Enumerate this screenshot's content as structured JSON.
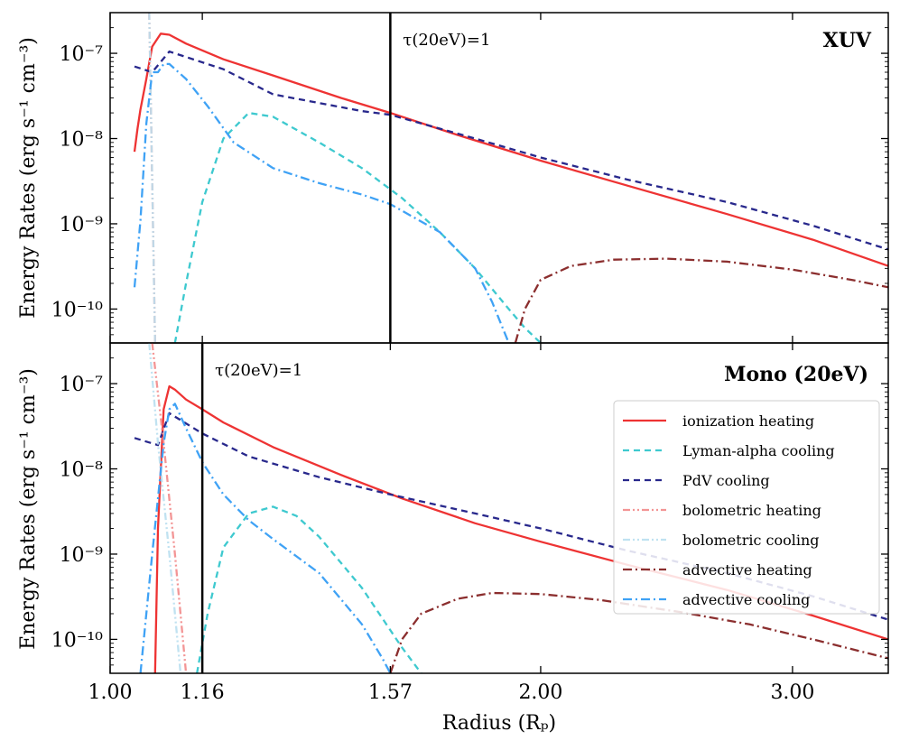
{
  "chart_data": [
    {
      "type": "line",
      "title": "XUV",
      "ylabel": "Energy Rates (erg s⁻¹ cm⁻³)",
      "xscale": "log",
      "yscale": "log",
      "xlim": [
        1.0,
        3.5
      ],
      "ylim": [
        4e-11,
        3e-07
      ],
      "yticks": [
        {
          "value": 1e-07,
          "label": "10⁻⁷"
        },
        {
          "value": 1e-08,
          "label": "10⁻⁸"
        },
        {
          "value": 1e-09,
          "label": "10⁻⁹"
        },
        {
          "value": 1e-10,
          "label": "10⁻¹⁰"
        }
      ],
      "vline": {
        "x": 1.57,
        "label": "τ(20eV)=1"
      },
      "series": [
        {
          "key": "ionization",
          "name": "ionization heating",
          "x": [
            1.04,
            1.045,
            1.05,
            1.06,
            1.07,
            1.085,
            1.1,
            1.13,
            1.2,
            1.3,
            1.45,
            1.57,
            1.75,
            2.0,
            2.3,
            2.7,
            3.1,
            3.5
          ],
          "y": [
            7e-09,
            1.3e-08,
            2.2e-08,
            5e-08,
            1.2e-07,
            1.7e-07,
            1.65e-07,
            1.3e-07,
            8.5e-08,
            5.5e-08,
            3e-08,
            2e-08,
            1.1e-08,
            5.5e-09,
            2.8e-09,
            1.3e-09,
            6.5e-10,
            3.2e-10
          ]
        },
        {
          "key": "lyman",
          "name": "Lyman-alpha cooling",
          "x": [
            1.11,
            1.13,
            1.16,
            1.2,
            1.25,
            1.3,
            1.4,
            1.5,
            1.6,
            1.7,
            1.8,
            1.9,
            1.95,
            2.0
          ],
          "y": [
            4e-11,
            2e-10,
            1.8e-09,
            1e-08,
            2e-08,
            1.8e-08,
            9e-09,
            4.5e-09,
            2e-09,
            8e-10,
            3e-10,
            1e-10,
            6e-11,
            4e-11
          ]
        },
        {
          "key": "pdv",
          "name": "PdV cooling",
          "x": [
            1.04,
            1.07,
            1.1,
            1.2,
            1.3,
            1.5,
            1.57,
            1.8,
            2.0,
            2.3,
            2.7,
            3.1,
            3.5
          ],
          "y": [
            7e-08,
            6e-08,
            1.05e-07,
            6.5e-08,
            3.3e-08,
            2.1e-08,
            1.9e-08,
            1e-08,
            6e-09,
            3.3e-09,
            1.8e-09,
            9.5e-10,
            5e-10
          ]
        },
        {
          "key": "bolo_h",
          "name": "bolometric heating",
          "x": [
            1.065,
            1.075
          ],
          "y": [
            3e-07,
            4e-11
          ]
        },
        {
          "key": "bolo_c",
          "name": "bolometric cooling",
          "x": [
            1.065,
            1.075
          ],
          "y": [
            3e-07,
            4e-11
          ]
        },
        {
          "key": "adv_h",
          "name": "advective heating",
          "x": [
            1.92,
            1.95,
            2.0,
            2.1,
            2.25,
            2.45,
            2.7,
            3.0,
            3.3,
            3.5
          ],
          "y": [
            4e-11,
            1e-10,
            2.2e-10,
            3.2e-10,
            3.8e-10,
            3.9e-10,
            3.6e-10,
            2.9e-10,
            2.2e-10,
            1.8e-10
          ]
        },
        {
          "key": "adv_c",
          "name": "advective cooling",
          "x": [
            1.04,
            1.05,
            1.06,
            1.07,
            1.08,
            1.09,
            1.1,
            1.13,
            1.17,
            1.22,
            1.3,
            1.4,
            1.5,
            1.57,
            1.7,
            1.8,
            1.85,
            1.9
          ],
          "y": [
            1.8e-10,
            1.1e-09,
            1.5e-08,
            6e-08,
            6e-08,
            7.5e-08,
            7.5e-08,
            5e-08,
            2.4e-08,
            9e-09,
            4.5e-09,
            3e-09,
            2.2e-09,
            1.7e-09,
            8e-10,
            3e-10,
            1.2e-10,
            4e-11
          ]
        }
      ]
    },
    {
      "type": "line",
      "title": "Mono (20eV)",
      "ylabel": "Energy Rates (erg s⁻¹ cm⁻³)",
      "xlabel": "Radius (Rₚ)",
      "xscale": "log",
      "yscale": "log",
      "xlim": [
        1.0,
        3.5
      ],
      "ylim": [
        4e-11,
        3e-07
      ],
      "xticks": [
        {
          "value": 1.0,
          "label": "1.00"
        },
        {
          "value": 1.16,
          "label": "1.16"
        },
        {
          "value": 1.57,
          "label": "1.57"
        },
        {
          "value": 2.0,
          "label": "2.00"
        },
        {
          "value": 3.0,
          "label": "3.00"
        }
      ],
      "yticks": [
        {
          "value": 1e-07,
          "label": "10⁻⁷"
        },
        {
          "value": 1e-08,
          "label": "10⁻⁸"
        },
        {
          "value": 1e-09,
          "label": "10⁻⁹"
        },
        {
          "value": 1e-10,
          "label": "10⁻¹⁰"
        }
      ],
      "vline": {
        "x": 1.16,
        "label": "τ(20eV)=1"
      },
      "legend": {
        "placement": "center-right"
      },
      "series": [
        {
          "key": "ionization",
          "name": "ionization heating",
          "x": [
            1.075,
            1.08,
            1.09,
            1.1,
            1.11,
            1.13,
            1.16,
            1.2,
            1.3,
            1.45,
            1.6,
            1.8,
            2.0,
            2.3,
            2.7,
            3.1,
            3.5
          ],
          "y": [
            4e-11,
            2e-09,
            5e-08,
            9.3e-08,
            8.5e-08,
            6.5e-08,
            5e-08,
            3.5e-08,
            1.8e-08,
            8.5e-09,
            4.5e-09,
            2.3e-09,
            1.4e-09,
            7.5e-10,
            3.8e-10,
            1.9e-10,
            1e-10
          ]
        },
        {
          "key": "lyman",
          "name": "Lyman-alpha cooling",
          "x": [
            1.15,
            1.17,
            1.2,
            1.25,
            1.3,
            1.35,
            1.4,
            1.5,
            1.6,
            1.65
          ],
          "y": [
            4e-11,
            2e-10,
            1.2e-09,
            3e-09,
            3.6e-09,
            2.8e-09,
            1.6e-09,
            4e-10,
            8e-11,
            4e-11
          ]
        },
        {
          "key": "pdv",
          "name": "PdV cooling",
          "x": [
            1.04,
            1.08,
            1.1,
            1.16,
            1.25,
            1.4,
            1.57,
            1.8,
            2.0,
            2.3,
            2.7,
            3.1,
            3.5
          ],
          "y": [
            2.3e-08,
            1.9e-08,
            4.5e-08,
            2.6e-08,
            1.4e-08,
            8e-09,
            5e-09,
            3e-09,
            2e-09,
            1.1e-09,
            6e-10,
            3.2e-10,
            1.7e-10
          ]
        },
        {
          "key": "bolo_h",
          "name": "bolometric heating",
          "x": [
            1.07,
            1.09,
            1.11,
            1.13
          ],
          "y": [
            3e-07,
            2e-08,
            1e-09,
            4e-11
          ]
        },
        {
          "key": "bolo_c",
          "name": "bolometric cooling",
          "x": [
            1.065,
            1.08,
            1.1,
            1.12
          ],
          "y": [
            3e-07,
            2e-08,
            1e-09,
            4e-11
          ]
        },
        {
          "key": "adv_h",
          "name": "advective heating",
          "x": [
            1.57,
            1.6,
            1.65,
            1.75,
            1.85,
            2.0,
            2.2,
            2.5,
            2.8,
            3.1,
            3.5
          ],
          "y": [
            4e-11,
            1e-10,
            2e-10,
            3e-10,
            3.5e-10,
            3.4e-10,
            2.9e-10,
            2.1e-10,
            1.5e-10,
            1e-10,
            6e-11
          ]
        },
        {
          "key": "adv_c",
          "name": "advective cooling",
          "x": [
            1.05,
            1.07,
            1.09,
            1.1,
            1.11,
            1.13,
            1.16,
            1.2,
            1.25,
            1.3,
            1.4,
            1.5,
            1.55,
            1.57
          ],
          "y": [
            4e-11,
            1e-09,
            2e-08,
            5e-08,
            5.8e-08,
            3e-08,
            1.2e-08,
            5e-09,
            2.5e-09,
            1.5e-09,
            6e-10,
            1.5e-10,
            6e-11,
            4e-11
          ]
        }
      ]
    }
  ],
  "styles": {
    "ionization": {
      "color": "#ee3333",
      "dash": "",
      "opacity": 1
    },
    "lyman": {
      "color": "#3ec9cf",
      "dash": "7,5",
      "opacity": 1
    },
    "pdv": {
      "color": "#28288c",
      "dash": "7,5",
      "opacity": 1
    },
    "bolo_h": {
      "color": "#f28a8a",
      "dash": "8,3,2,3,2,3",
      "opacity": 0.9
    },
    "bolo_c": {
      "color": "#b9dff0",
      "dash": "8,3,2,3,2,3",
      "opacity": 0.9
    },
    "adv_h": {
      "color": "#8b2e2e",
      "dash": "10,4,2,4",
      "opacity": 1
    },
    "adv_c": {
      "color": "#3fa2f5",
      "dash": "10,4,2,4",
      "opacity": 1
    }
  }
}
